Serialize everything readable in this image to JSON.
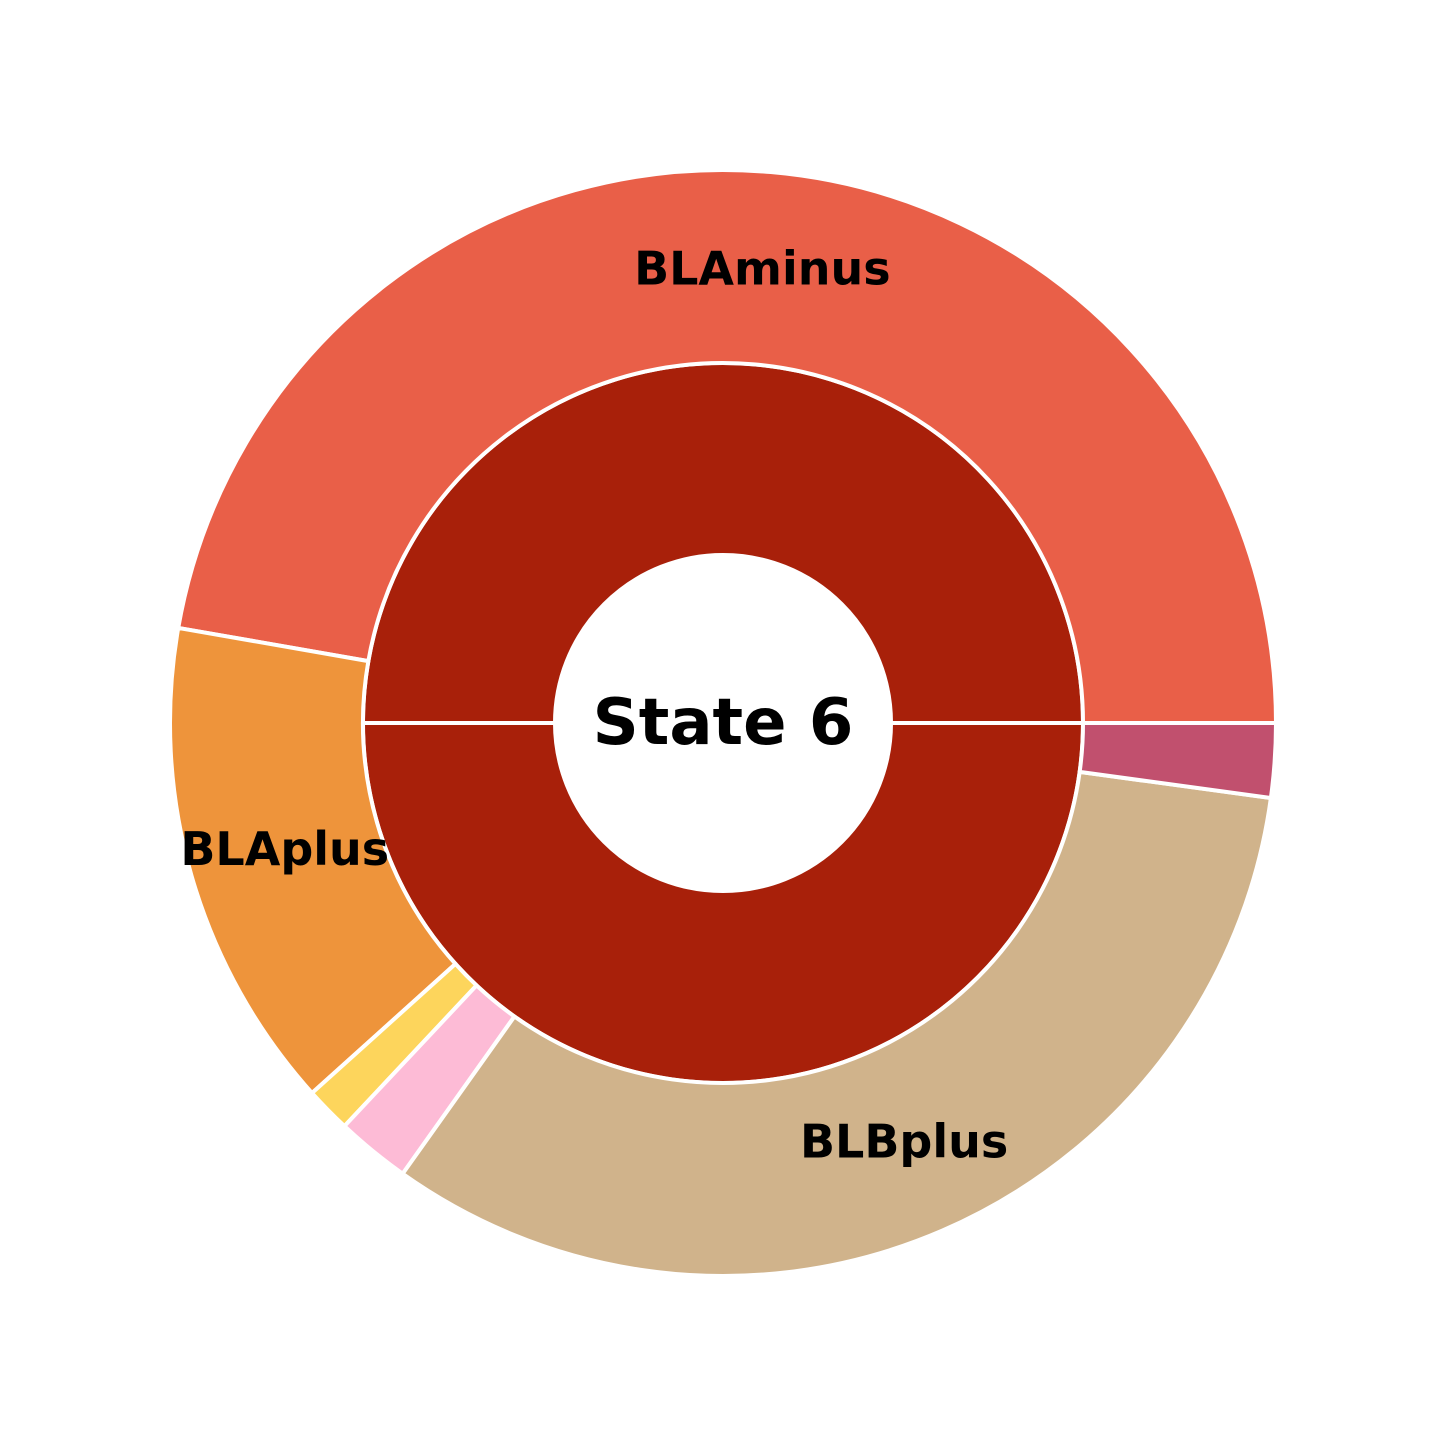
{
  "chart_data": {
    "type": "pie",
    "style": "nested donut",
    "center_label": "State 6",
    "inner_ring": [
      {
        "value": 100,
        "color": "#a8200a"
      }
    ],
    "outer_ring": [
      {
        "label": "BLAminus",
        "value": 56.7,
        "color": "#e95f48"
      },
      {
        "label": "BLAplus",
        "value": 17.3,
        "color": "#ee943b"
      },
      {
        "label": "",
        "value": 1.6,
        "color": "#fdd55c"
      },
      {
        "label": "",
        "value": 2.6,
        "color": "#fdbbd6"
      },
      {
        "label": "BLBplus",
        "value": 39.2,
        "color": "#d0b38b"
      },
      {
        "label": "",
        "value": 2.6,
        "color": "#c1506e"
      }
    ],
    "start_angle_deg": 0,
    "direction": "counterclockwise"
  }
}
